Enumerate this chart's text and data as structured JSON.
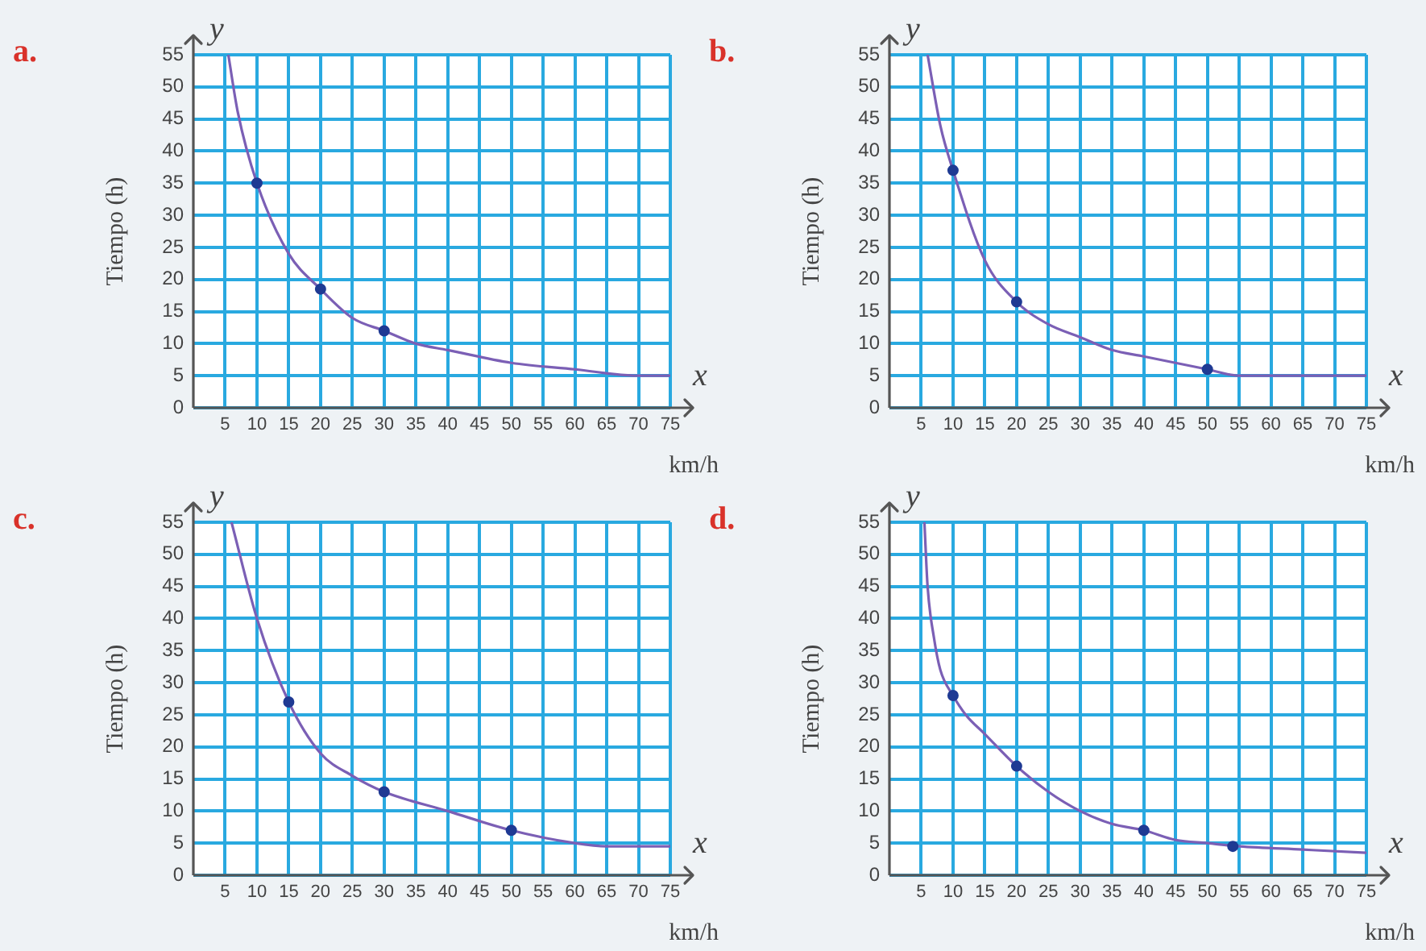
{
  "chart_data": [
    {
      "type": "line",
      "title": "a.",
      "xlabel": "km/h",
      "ylabel": "Tiempo (h)",
      "annotations": [
        "y",
        "x"
      ],
      "xlim": [
        0,
        75
      ],
      "ylim": [
        0,
        55
      ],
      "xticks": [
        5,
        10,
        15,
        20,
        25,
        30,
        35,
        40,
        45,
        50,
        55,
        60,
        65,
        70,
        75
      ],
      "yticks": [
        0,
        5,
        10,
        15,
        20,
        25,
        30,
        35,
        40,
        45,
        50,
        55
      ],
      "grid": true,
      "tick_labels": true,
      "series": [
        {
          "type": "line",
          "color": "#7b5fb5",
          "marker": "none",
          "x": [
            5.5,
            7,
            10,
            15,
            20,
            25,
            30,
            35,
            40,
            50,
            60,
            70,
            75
          ],
          "values": [
            55,
            46,
            35,
            24,
            18.5,
            14,
            12,
            10,
            9,
            7,
            6,
            5,
            5
          ]
        },
        {
          "type": "scatter",
          "color": "#1f3a93",
          "marker": "circle",
          "x": [
            10,
            20,
            30
          ],
          "values": [
            35,
            18.5,
            12
          ]
        }
      ]
    },
    {
      "type": "line",
      "title": "b.",
      "xlabel": "km/h",
      "ylabel": "Tiempo (h)",
      "annotations": [
        "y",
        "x"
      ],
      "xlim": [
        0,
        75
      ],
      "ylim": [
        0,
        55
      ],
      "xticks": [
        5,
        10,
        15,
        20,
        25,
        30,
        35,
        40,
        45,
        50,
        55,
        60,
        65,
        70,
        75
      ],
      "yticks": [
        0,
        5,
        10,
        15,
        20,
        25,
        30,
        35,
        40,
        45,
        50,
        55
      ],
      "grid": true,
      "tick_labels": true,
      "series": [
        {
          "type": "line",
          "color": "#7b5fb5",
          "marker": "none",
          "x": [
            6,
            8,
            10,
            15,
            20,
            25,
            30,
            35,
            40,
            50,
            55,
            60,
            75
          ],
          "values": [
            55,
            44,
            37,
            23,
            16.5,
            13,
            11,
            9,
            8,
            6,
            5,
            5,
            5
          ]
        },
        {
          "type": "scatter",
          "color": "#1f3a93",
          "marker": "circle",
          "x": [
            10,
            20,
            50
          ],
          "values": [
            37,
            16.5,
            6
          ]
        }
      ]
    },
    {
      "type": "line",
      "title": "c.",
      "xlabel": "km/h",
      "ylabel": "Tiempo (h)",
      "annotations": [
        "y",
        "x"
      ],
      "xlim": [
        0,
        75
      ],
      "ylim": [
        0,
        55
      ],
      "xticks": [
        5,
        10,
        15,
        20,
        25,
        30,
        35,
        40,
        45,
        50,
        55,
        60,
        65,
        70,
        75
      ],
      "yticks": [
        0,
        5,
        10,
        15,
        20,
        25,
        30,
        35,
        40,
        45,
        50,
        55
      ],
      "grid": true,
      "tick_labels": true,
      "series": [
        {
          "type": "line",
          "color": "#7b5fb5",
          "marker": "none",
          "x": [
            6,
            10,
            15,
            20,
            25,
            30,
            40,
            50,
            60,
            65,
            75
          ],
          "values": [
            55,
            40,
            27,
            19,
            15.5,
            13,
            10,
            7,
            5,
            4.5,
            4.5
          ]
        },
        {
          "type": "scatter",
          "color": "#1f3a93",
          "marker": "circle",
          "x": [
            15,
            30,
            50
          ],
          "values": [
            27,
            13,
            7
          ]
        }
      ]
    },
    {
      "type": "line",
      "title": "d.",
      "xlabel": "km/h",
      "ylabel": "Tiempo (h)",
      "annotations": [
        "y",
        "x"
      ],
      "xlim": [
        0,
        75
      ],
      "ylim": [
        0,
        55
      ],
      "xticks": [
        5,
        10,
        15,
        20,
        25,
        30,
        35,
        40,
        45,
        50,
        55,
        60,
        65,
        70,
        75
      ],
      "yticks": [
        0,
        5,
        10,
        15,
        20,
        25,
        30,
        35,
        40,
        45,
        50,
        55
      ],
      "grid": true,
      "tick_labels": true,
      "series": [
        {
          "type": "line",
          "color": "#7b5fb5",
          "marker": "none",
          "x": [
            5.5,
            6,
            7,
            8,
            10,
            12,
            15,
            20,
            25,
            30,
            35,
            40,
            45,
            50,
            55,
            65,
            75
          ],
          "values": [
            55,
            45,
            37,
            32,
            28,
            25,
            22,
            17,
            13,
            10,
            8,
            7,
            5.5,
            5,
            4.5,
            4,
            3.5
          ]
        },
        {
          "type": "scatter",
          "color": "#1f3a93",
          "marker": "circle",
          "x": [
            10,
            20,
            40,
            54
          ],
          "values": [
            28,
            17,
            7,
            4.5
          ]
        }
      ]
    }
  ]
}
